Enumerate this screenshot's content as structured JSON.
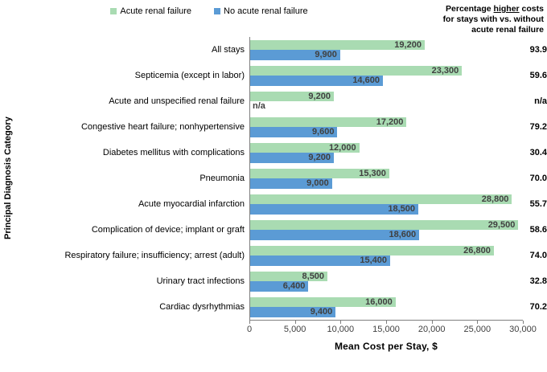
{
  "annotation": {
    "line1_pre": "Percentage ",
    "line1_underlined": "higher",
    "line1_post": " costs",
    "line2": "for stays with vs. without",
    "line3": "acute renal failure"
  },
  "chart_data": {
    "type": "bar",
    "orientation": "horizontal",
    "xlabel": "Mean Cost per Stay, $",
    "ylabel": "Principal Diagnosis Category",
    "xlim": [
      0,
      30000
    ],
    "xticks": [
      0,
      5000,
      10000,
      15000,
      20000,
      25000,
      30000
    ],
    "xtick_labels": [
      "0",
      "5,000",
      "10,000",
      "15,000",
      "20,000",
      "25,000",
      "30,000"
    ],
    "grid": false,
    "legend_position": "top-center",
    "categories": [
      "All stays",
      "Septicemia (except in labor)",
      "Acute and unspecified renal failure",
      "Congestive heart failure; nonhypertensive",
      "Diabetes mellitus with complications",
      "Pneumonia",
      "Acute myocardial infarction",
      "Complication of device; implant or graft",
      "Respiratory failure; insufficiency; arrest (adult)",
      "Urinary tract infections",
      "Cardiac dysrhythmias"
    ],
    "series": [
      {
        "name": "Acute renal failure",
        "color": "#a9dbb2",
        "values": [
          19200,
          23300,
          9200,
          17200,
          12000,
          15300,
          28800,
          29500,
          26800,
          8500,
          16000
        ],
        "display": [
          "19,200",
          "23,300",
          "9,200",
          "17,200",
          "12,000",
          "15,300",
          "28,800",
          "29,500",
          "26,800",
          "8,500",
          "16,000"
        ]
      },
      {
        "name": "No acute renal failure",
        "color": "#5b9bd5",
        "values": [
          9900,
          14600,
          null,
          9600,
          9200,
          9000,
          18500,
          18600,
          15400,
          6400,
          9400
        ],
        "display": [
          "9,900",
          "14,600",
          "n/a",
          "9,600",
          "9,200",
          "9,000",
          "18,500",
          "18,600",
          "15,400",
          "6,400",
          "9,400"
        ]
      }
    ],
    "pct_values": [
      "93.9",
      "59.6",
      "n/a",
      "79.2",
      "30.4",
      "70.0",
      "55.7",
      "58.6",
      "74.0",
      "32.8",
      "70.2"
    ],
    "axis_color": "#7f7f7f",
    "data_label_color": "#404040"
  }
}
